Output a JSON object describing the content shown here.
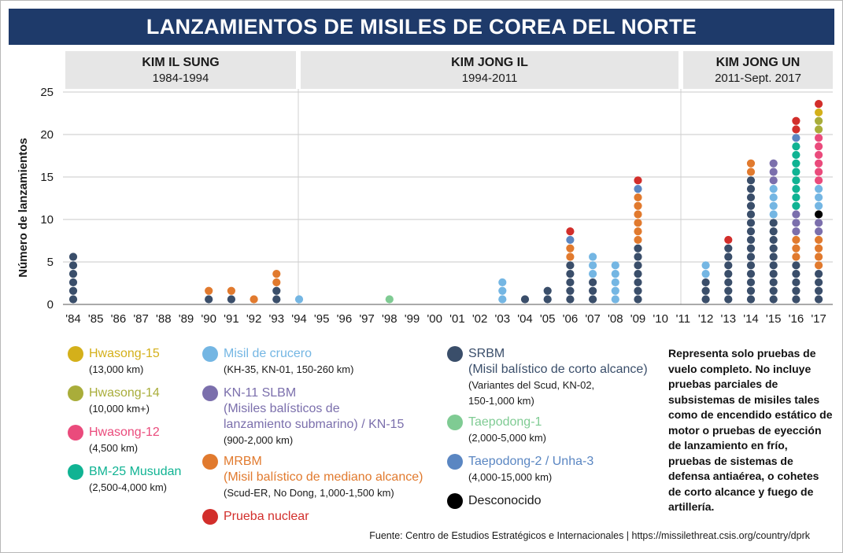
{
  "title": "LANZAMIENTOS DE MISILES DE COREA DEL NORTE",
  "eras": [
    {
      "name": "KIM IL SUNG",
      "years": "1984-1994"
    },
    {
      "name": "KIM JONG IL",
      "years": "1994-2011"
    },
    {
      "name": "KIM JONG UN",
      "years": "2011-Sept. 2017"
    }
  ],
  "chart_data": {
    "type": "scatter",
    "title": "LANZAMIENTOS DE MISILES DE COREA DEL NORTE",
    "xlabel": "",
    "ylabel": "Número de lanzamientos",
    "ylim": [
      0,
      25
    ],
    "yticks": [
      "0",
      "5",
      "10",
      "15",
      "20",
      "25"
    ],
    "grid": true,
    "categories": [
      "'84",
      "'85",
      "'86",
      "'87",
      "'88",
      "'89",
      "'90",
      "'91",
      "'92",
      "'93",
      "'94",
      "'95",
      "'96",
      "'97",
      "'98",
      "'99",
      "'00",
      "'01",
      "'02",
      "'03",
      "'04",
      "'05",
      "'06",
      "'07",
      "'08",
      "'09",
      "'10",
      "'11",
      "'12",
      "'13",
      "'14",
      "'15",
      "'16",
      "'17"
    ],
    "stacks": [
      [
        "srbm",
        "srbm",
        "srbm",
        "srbm",
        "srbm",
        "srbm"
      ],
      [],
      [],
      [],
      [],
      [],
      [
        "srbm",
        "mrbm"
      ],
      [
        "srbm",
        "mrbm"
      ],
      [
        "mrbm"
      ],
      [
        "srbm",
        "srbm",
        "mrbm",
        "mrbm"
      ],
      [
        "cruise"
      ],
      [],
      [],
      [],
      [
        "td1"
      ],
      [],
      [],
      [],
      [],
      [
        "cruise",
        "cruise",
        "cruise"
      ],
      [
        "srbm"
      ],
      [
        "srbm",
        "srbm"
      ],
      [
        "srbm",
        "srbm",
        "srbm",
        "srbm",
        "srbm",
        "mrbm",
        "mrbm",
        "td2",
        "nuclear"
      ],
      [
        "srbm",
        "srbm",
        "srbm",
        "cruise",
        "cruise",
        "cruise"
      ],
      [
        "cruise",
        "cruise",
        "cruise",
        "cruise",
        "cruise"
      ],
      [
        "srbm",
        "srbm",
        "srbm",
        "srbm",
        "srbm",
        "srbm",
        "srbm",
        "mrbm",
        "mrbm",
        "mrbm",
        "mrbm",
        "mrbm",
        "mrbm",
        "td2",
        "nuclear"
      ],
      [],
      [],
      [
        "srbm",
        "srbm",
        "srbm",
        "cruise",
        "cruise"
      ],
      [
        "srbm",
        "srbm",
        "srbm",
        "srbm",
        "srbm",
        "srbm",
        "srbm",
        "nuclear"
      ],
      [
        "srbm",
        "srbm",
        "srbm",
        "srbm",
        "srbm",
        "srbm",
        "srbm",
        "srbm",
        "srbm",
        "srbm",
        "srbm",
        "srbm",
        "srbm",
        "srbm",
        "srbm",
        "mrbm",
        "mrbm"
      ],
      [
        "srbm",
        "srbm",
        "srbm",
        "srbm",
        "srbm",
        "srbm",
        "srbm",
        "srbm",
        "srbm",
        "srbm",
        "cruise",
        "cruise",
        "cruise",
        "cruise",
        "kn11",
        "kn11",
        "kn11"
      ],
      [
        "srbm",
        "srbm",
        "srbm",
        "srbm",
        "srbm",
        "mrbm",
        "mrbm",
        "mrbm",
        "kn11",
        "kn11",
        "kn11",
        "bm25",
        "bm25",
        "bm25",
        "bm25",
        "bm25",
        "bm25",
        "bm25",
        "bm25",
        "td2",
        "nuclear",
        "nuclear"
      ],
      [
        "srbm",
        "srbm",
        "srbm",
        "srbm",
        "mrbm",
        "mrbm",
        "mrbm",
        "mrbm",
        "kn11",
        "kn11",
        "unknown",
        "cruise",
        "cruise",
        "cruise",
        "hw12",
        "hw12",
        "hw12",
        "hw12",
        "hw12",
        "hw12",
        "hw14",
        "hw14",
        "hw15",
        "nuclear"
      ]
    ]
  },
  "types": {
    "hw15": {
      "name": "Hwasong-15",
      "desc": "(13,000 km)",
      "color": "#d4b01a"
    },
    "hw14": {
      "name": "Hwasong-14",
      "desc": "(10,000 km+)",
      "color": "#a9ad3a"
    },
    "hw12": {
      "name": "Hwasong-12",
      "desc": "(4,500 km)",
      "color": "#ea4b7c"
    },
    "bm25": {
      "name": "BM-25 Musudan",
      "desc": "(2,500-4,000 km)",
      "color": "#10b393"
    },
    "cruise": {
      "name": "Misil de crucero",
      "desc": "(KH-35, KN-01, 150-260 km)",
      "color": "#74b6e3"
    },
    "kn11": {
      "name": "KN-11 SLBM (Misiles balísticos de lanzamiento submarino) / KN-15",
      "desc": "(900-2,000 km)",
      "color": "#7b6fac"
    },
    "mrbm": {
      "name": "MRBM (Misil balístico de mediano alcance)",
      "desc": "(Scud-ER, No Dong, 1,000-1,500 km)",
      "color": "#e17a2e"
    },
    "nuclear": {
      "name": "Prueba nuclear",
      "desc": "",
      "color": "#d22e2b"
    },
    "srbm": {
      "name": "SRBM (Misil balístico de corto alcance)",
      "desc": "(Variantes del Scud, KN-02, 150-1,000 km)",
      "color": "#3a4e6a"
    },
    "td1": {
      "name": "Taepodong-1",
      "desc": "(2,000-5,000 km)",
      "color": "#7fcb93"
    },
    "td2": {
      "name": "Taepodong-2 / Unha-3",
      "desc": "(4,000-15,000 km)",
      "color": "#5a86c2"
    },
    "unknown": {
      "name": "Desconocido",
      "desc": "",
      "color": "#000000"
    }
  },
  "legend": {
    "col1": [
      {
        "key": "hw15",
        "name_lines": [
          "Hwasong-15"
        ],
        "desc_lines": [
          "(13,000 km)"
        ]
      },
      {
        "key": "hw14",
        "name_lines": [
          "Hwasong-14"
        ],
        "desc_lines": [
          "(10,000 km+)"
        ]
      },
      {
        "key": "hw12",
        "name_lines": [
          "Hwasong-12"
        ],
        "desc_lines": [
          "(4,500 km)"
        ]
      },
      {
        "key": "bm25",
        "name_lines": [
          "BM-25 Musudan"
        ],
        "desc_lines": [
          "(2,500-4,000 km)"
        ]
      }
    ],
    "col2": [
      {
        "key": "cruise",
        "name_lines": [
          "Misil de crucero"
        ],
        "desc_lines": [
          "(KH-35, KN-01, 150-260 km)"
        ]
      },
      {
        "key": "kn11",
        "name_lines": [
          "KN-11 SLBM",
          "(Misiles balísticos de",
          "lanzamiento submarino) / KN-15"
        ],
        "desc_lines": [
          "(900-2,000 km)"
        ]
      },
      {
        "key": "mrbm",
        "name_lines": [
          "MRBM",
          "(Misil balístico de mediano alcance)"
        ],
        "desc_lines": [
          "(Scud-ER, No Dong, 1,000-1,500 km)"
        ]
      },
      {
        "key": "nuclear",
        "name_lines": [
          "Prueba nuclear"
        ],
        "desc_lines": []
      }
    ],
    "col3": [
      {
        "key": "srbm",
        "name_lines": [
          "SRBM",
          "(Misil balístico de corto alcance)"
        ],
        "desc_lines": [
          "(Variantes del Scud, KN-02,",
          "150-1,000 km)"
        ]
      },
      {
        "key": "td1",
        "name_lines": [
          "Taepodong-1"
        ],
        "desc_lines": [
          "(2,000-5,000 km)"
        ]
      },
      {
        "key": "td2",
        "name_lines": [
          "Taepodong-2 / Unha-3"
        ],
        "desc_lines": [
          "(4,000-15,000 km)"
        ]
      },
      {
        "key": "unknown",
        "name_lines": [
          "Desconocido"
        ],
        "desc_lines": []
      }
    ]
  },
  "note": "Representa solo pruebas de vuelo completo. No incluye pruebas parciales de subsistemas de misiles tales como de encendido estático de motor o pruebas de eyección de lanzamiento en frío, pruebas de sistemas de defensa antiaérea, o cohetes de corto alcance y fuego de artillería.",
  "source": "Fuente: Centro de Estudios Estratégicos e Internacionales  |  https://missilethreat.csis.org/country/dprk"
}
